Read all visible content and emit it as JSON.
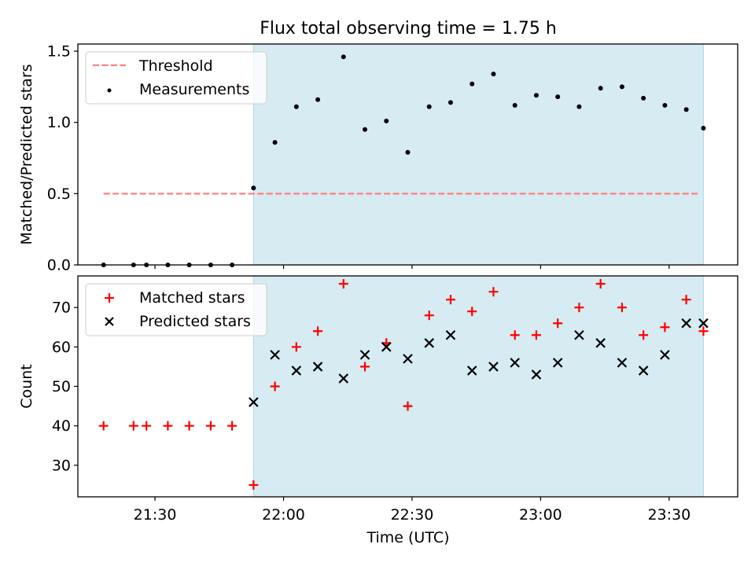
{
  "title": "Flux total observing time = 1.75 h",
  "colors": {
    "observing_span": "#add8e6",
    "threshold": "#ff7f7f",
    "measurements": "#000000",
    "matched": "#ff0000",
    "predicted": "#000000"
  },
  "chart_data": [
    {
      "type": "scatter",
      "ylabel": "Matched/Predicted stars",
      "ylim": [
        0,
        1.55
      ],
      "yticks": [
        0.0,
        0.5,
        1.0,
        1.5
      ],
      "ytick_labels": [
        "0.0",
        "0.5",
        "1.0",
        "1.5"
      ],
      "xlim": [
        "21:12",
        "23:46"
      ],
      "legend_position": "upper left",
      "shaded_span": [
        "21:53",
        "23:38"
      ],
      "threshold": {
        "name": "Threshold",
        "value": 0.5,
        "x": [
          "21:18",
          "23:37"
        ]
      },
      "series": [
        {
          "name": "Measurements",
          "x": [
            "21:18",
            "21:25",
            "21:28",
            "21:33",
            "21:38",
            "21:43",
            "21:48",
            "21:53",
            "21:58",
            "22:03",
            "22:08",
            "22:14",
            "22:19",
            "22:24",
            "22:29",
            "22:34",
            "22:39",
            "22:44",
            "22:49",
            "22:54",
            "22:59",
            "23:04",
            "23:09",
            "23:14",
            "23:19",
            "23:24",
            "23:29",
            "23:34",
            "23:38"
          ],
          "y": [
            0,
            0,
            0,
            0,
            0,
            0,
            0,
            0.54,
            0.86,
            1.11,
            1.16,
            1.46,
            0.95,
            1.01,
            0.79,
            1.11,
            1.14,
            1.27,
            1.34,
            1.12,
            1.19,
            1.18,
            1.11,
            1.24,
            1.25,
            1.17,
            1.12,
            1.09,
            0.96
          ]
        }
      ]
    },
    {
      "type": "scatter",
      "xlabel": "Time (UTC)",
      "ylabel": "Count",
      "ylim": [
        22,
        78
      ],
      "yticks": [
        30,
        40,
        50,
        60,
        70
      ],
      "ytick_labels": [
        "30",
        "40",
        "50",
        "60",
        "70"
      ],
      "xlim": [
        "21:12",
        "23:46"
      ],
      "xticks": [
        "21:30",
        "22:00",
        "22:30",
        "23:00",
        "23:30"
      ],
      "legend_position": "upper left",
      "shaded_span": [
        "21:53",
        "23:38"
      ],
      "series": [
        {
          "name": "Matched stars",
          "x": [
            "21:18",
            "21:25",
            "21:28",
            "21:33",
            "21:38",
            "21:43",
            "21:48",
            "21:53",
            "21:58",
            "22:03",
            "22:08",
            "22:14",
            "22:19",
            "22:24",
            "22:29",
            "22:34",
            "22:39",
            "22:44",
            "22:49",
            "22:54",
            "22:59",
            "23:04",
            "23:09",
            "23:14",
            "23:19",
            "23:24",
            "23:29",
            "23:34",
            "23:38"
          ],
          "y": [
            40,
            40,
            40,
            40,
            40,
            40,
            40,
            25,
            50,
            60,
            64,
            76,
            55,
            61,
            45,
            68,
            72,
            69,
            74,
            63,
            63,
            66,
            70,
            76,
            70,
            63,
            65,
            72,
            64
          ]
        },
        {
          "name": "Predicted stars",
          "x": [
            "21:53",
            "21:58",
            "22:03",
            "22:08",
            "22:14",
            "22:19",
            "22:24",
            "22:29",
            "22:34",
            "22:39",
            "22:44",
            "22:49",
            "22:54",
            "22:59",
            "23:04",
            "23:09",
            "23:14",
            "23:19",
            "23:24",
            "23:29",
            "23:34",
            "23:38"
          ],
          "y": [
            46,
            58,
            54,
            55,
            52,
            58,
            60,
            57,
            61,
            63,
            54,
            55,
            56,
            53,
            56,
            63,
            61,
            56,
            54,
            58,
            66,
            66
          ]
        }
      ]
    }
  ]
}
